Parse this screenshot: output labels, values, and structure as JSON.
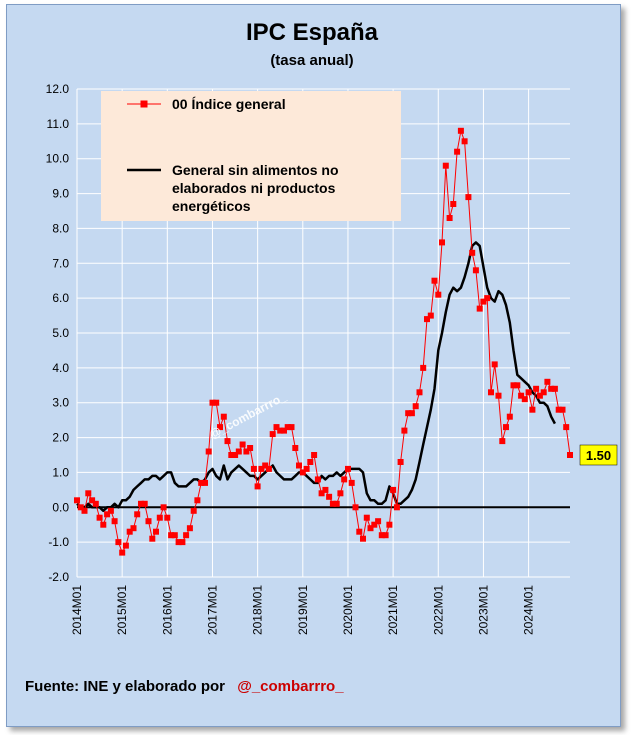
{
  "chart_data": {
    "type": "line",
    "title": "IPC España",
    "subtitle": "(tasa anual)",
    "ylim": [
      -2.0,
      12.0
    ],
    "y_ticks": [
      "12.0",
      "11.0",
      "10.0",
      "9.0",
      "8.0",
      "7.0",
      "6.0",
      "5.0",
      "4.0",
      "3.0",
      "2.0",
      "1.0",
      "0.0",
      "-1.0",
      "-2.0"
    ],
    "x_tick_labels": [
      "2014M01",
      "2015M01",
      "2016M01",
      "2017M01",
      "2018M01",
      "2019M01",
      "2020M01",
      "2021M01",
      "2022M01",
      "2023M01",
      "2024M01"
    ],
    "x_start": "2014M01",
    "grid": true,
    "legend_position": "top-left",
    "series": [
      {
        "name": "00 Índice general",
        "color": "#ff0000",
        "marker": "square",
        "values": [
          0.2,
          0.0,
          -0.1,
          0.4,
          0.2,
          0.1,
          -0.3,
          -0.5,
          -0.2,
          -0.1,
          -0.4,
          -1.0,
          -1.3,
          -1.1,
          -0.7,
          -0.6,
          -0.2,
          0.1,
          0.1,
          -0.4,
          -0.9,
          -0.7,
          -0.3,
          0.0,
          -0.3,
          -0.8,
          -0.8,
          -1.0,
          -1.0,
          -0.8,
          -0.6,
          -0.1,
          0.2,
          0.7,
          0.7,
          1.6,
          3.0,
          3.0,
          2.3,
          2.6,
          1.9,
          1.5,
          1.5,
          1.6,
          1.8,
          1.6,
          1.7,
          1.1,
          0.6,
          1.1,
          1.2,
          1.1,
          2.1,
          2.3,
          2.2,
          2.2,
          2.3,
          2.3,
          1.7,
          1.2,
          1.0,
          1.1,
          1.3,
          1.5,
          0.8,
          0.4,
          0.5,
          0.3,
          0.1,
          0.1,
          0.4,
          0.8,
          1.1,
          0.7,
          0.0,
          -0.7,
          -0.9,
          -0.3,
          -0.6,
          -0.5,
          -0.4,
          -0.8,
          -0.8,
          -0.5,
          0.5,
          0.0,
          1.3,
          2.2,
          2.7,
          2.7,
          2.9,
          3.3,
          4.0,
          5.4,
          5.5,
          6.5,
          6.1,
          7.6,
          9.8,
          8.3,
          8.7,
          10.2,
          10.8,
          10.5,
          8.9,
          7.3,
          6.8,
          5.7,
          5.9,
          6.0,
          3.3,
          4.1,
          3.2,
          1.9,
          2.3,
          2.6,
          3.5,
          3.5,
          3.2,
          3.1,
          3.3,
          2.8,
          3.4,
          3.2,
          3.3,
          3.6,
          3.4,
          3.4,
          2.8,
          2.8,
          2.3,
          1.5
        ],
        "last_value_label": "1.50"
      },
      {
        "name": "General sin alimentos no elaborados ni productos energéticos",
        "color": "#000000",
        "values": [
          0.1,
          0.0,
          0.0,
          0.1,
          0.0,
          0.0,
          0.0,
          -0.1,
          0.0,
          0.0,
          0.1,
          0.0,
          0.2,
          0.2,
          0.3,
          0.5,
          0.6,
          0.7,
          0.8,
          0.8,
          0.9,
          0.9,
          0.8,
          0.9,
          1.0,
          1.0,
          0.7,
          0.6,
          0.6,
          0.6,
          0.7,
          0.8,
          0.8,
          0.7,
          0.8,
          1.0,
          1.1,
          0.9,
          0.8,
          1.2,
          0.8,
          1.0,
          1.1,
          1.2,
          1.1,
          1.0,
          0.9,
          0.9,
          0.8,
          0.9,
          1.0,
          1.1,
          1.2,
          1.0,
          0.9,
          0.8,
          0.8,
          0.8,
          0.9,
          1.0,
          1.0,
          0.9,
          0.8,
          0.7,
          0.7,
          0.9,
          0.8,
          0.9,
          0.9,
          1.0,
          0.9,
          1.0,
          1.1,
          1.1,
          1.1,
          1.1,
          1.0,
          0.4,
          0.2,
          0.2,
          0.1,
          0.1,
          0.2,
          0.6,
          0.4,
          0.1,
          0.1,
          0.2,
          0.3,
          0.5,
          0.8,
          1.3,
          1.8,
          2.3,
          2.8,
          3.4,
          4.5,
          5.0,
          5.6,
          6.1,
          6.3,
          6.2,
          6.3,
          6.6,
          7.0,
          7.5,
          7.6,
          7.5,
          6.9,
          6.3,
          6.0,
          5.9,
          6.2,
          6.1,
          5.8,
          5.3,
          4.5,
          3.8,
          3.7,
          3.6,
          3.5,
          3.3,
          3.2,
          3.0,
          3.0,
          2.9,
          2.6,
          2.4
        ]
      }
    ]
  },
  "watermark": "@_combarrro_",
  "footer": {
    "source_text": "Fuente: INE y elaborado por",
    "handle": "@_combarrro_"
  }
}
